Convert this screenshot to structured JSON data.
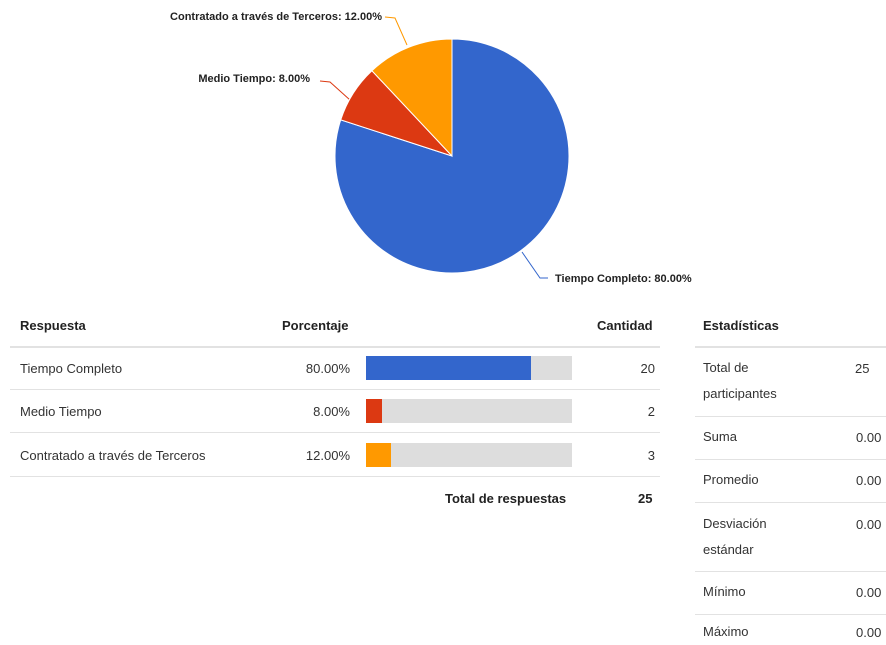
{
  "chart_data": {
    "type": "pie",
    "categories": [
      "Tiempo Completo",
      "Medio Tiempo",
      "Contratado a través de Terceros"
    ],
    "values": [
      80,
      8,
      12
    ],
    "value_labels": [
      "80.00%",
      "8.00%",
      "12.00%"
    ],
    "labels": [
      "Tiempo Completo: 80.00%",
      "Medio Tiempo: 8.00%",
      "Contratado a través de Terceros: 12.00%"
    ],
    "colors": [
      "#3366cc",
      "#dc3912",
      "#ff9900"
    ]
  },
  "table": {
    "headers": [
      "Respuesta",
      "Porcentaje",
      "Cantidad"
    ],
    "rows": [
      [
        "Tiempo Completo",
        "80.00%",
        20
      ],
      [
        "Medio Tiempo",
        "8.00%",
        2
      ],
      [
        "Contratado a través de Terceros",
        "12.00%",
        3
      ]
    ],
    "total_label": "Total de respuestas",
    "total": 25
  },
  "stats": {
    "title": "Estadísticas",
    "rows": [
      [
        "Total de participantes",
        "25"
      ],
      [
        "Suma",
        "0.00"
      ],
      [
        "Promedio",
        "0.00"
      ],
      [
        "Desviación estándar",
        "0.00"
      ],
      [
        "Mínimo",
        "0.00"
      ],
      [
        "Máximo",
        "0.00"
      ]
    ]
  }
}
